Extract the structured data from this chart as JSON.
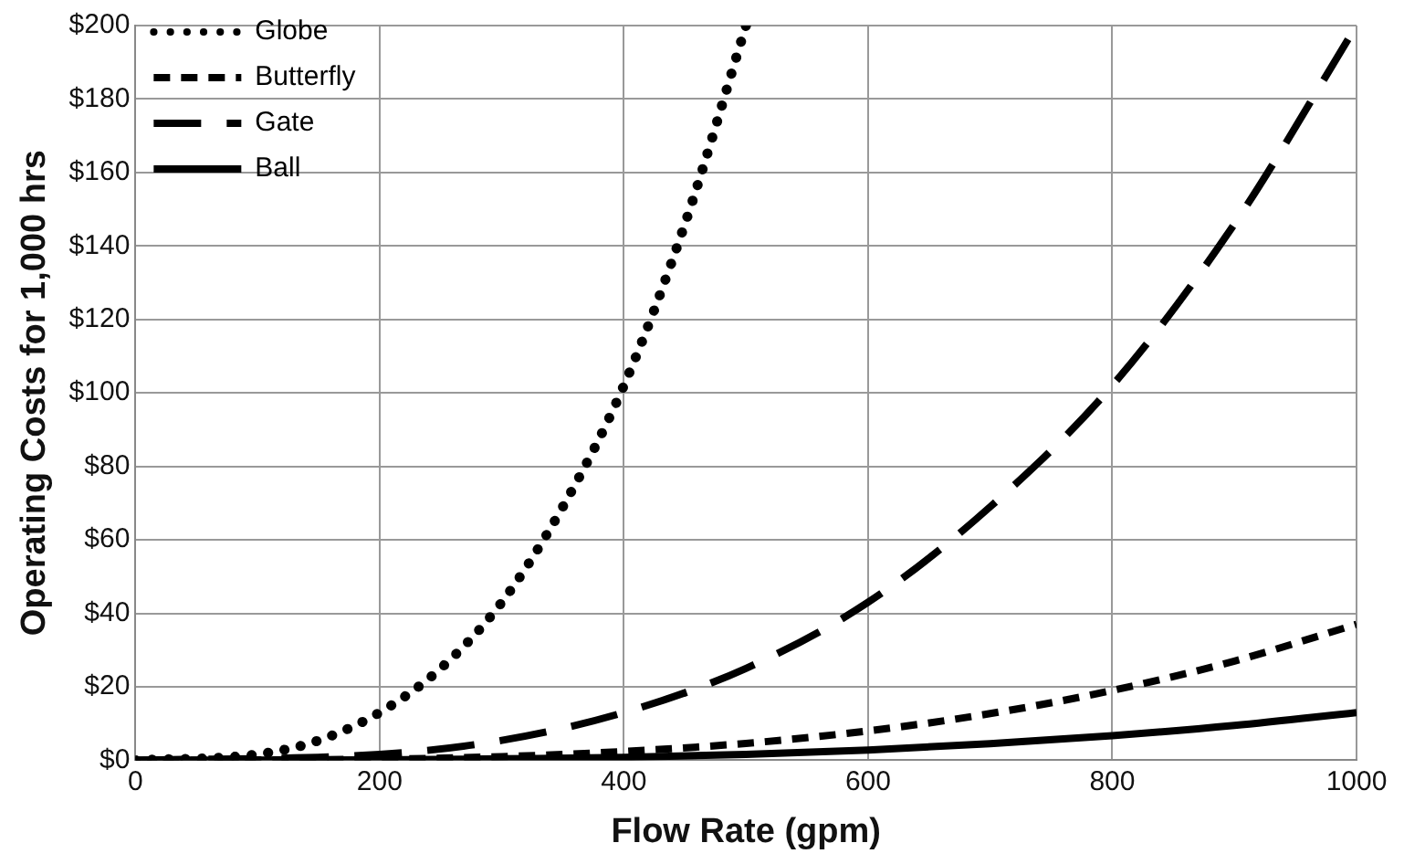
{
  "chart_data": {
    "type": "line",
    "xlabel": "Flow Rate (gpm)",
    "ylabel": "Operating Costs for 1,000 hrs",
    "xlim": [
      0,
      1000
    ],
    "xticks": [
      0,
      200,
      400,
      600,
      800,
      1000
    ],
    "ylim": [
      0,
      200
    ],
    "yticks": [
      {
        "value": 0,
        "label": "$0"
      },
      {
        "value": 20,
        "label": "$20"
      },
      {
        "value": 40,
        "label": "$40"
      },
      {
        "value": 60,
        "label": "$60"
      },
      {
        "value": 80,
        "label": "$80"
      },
      {
        "value": 100,
        "label": "$100"
      },
      {
        "value": 120,
        "label": "$120"
      },
      {
        "value": 140,
        "label": "$140"
      },
      {
        "value": 160,
        "label": "$160"
      },
      {
        "value": 180,
        "label": "$180"
      },
      {
        "value": 200,
        "label": "$200"
      }
    ],
    "grid": true,
    "legend": "top left",
    "marker": "none",
    "series": [
      {
        "name": "Globe",
        "color": "#000000",
        "line_style": "dotted",
        "x": [
          0,
          100,
          150,
          200,
          250,
          300,
          350,
          400,
          450,
          500
        ],
        "values": [
          0,
          1.6,
          5.4,
          13,
          25,
          43,
          69,
          102,
          146,
          200
        ]
      },
      {
        "name": "Butterfly",
        "color": "#000000",
        "line_style": "dashed",
        "x": [
          0,
          200,
          300,
          400,
          500,
          600,
          700,
          800,
          900,
          1000
        ],
        "values": [
          0,
          0.3,
          1,
          2.4,
          4.6,
          8,
          12.7,
          19,
          27,
          37
        ]
      },
      {
        "name": "Gate",
        "color": "#000000",
        "line_style": "dashed",
        "x": [
          0,
          200,
          300,
          400,
          500,
          600,
          700,
          800,
          900,
          1000
        ],
        "values": [
          0,
          1.6,
          5.4,
          13,
          25,
          43,
          69,
          102,
          146,
          200
        ]
      },
      {
        "name": "Ball",
        "color": "#000000",
        "line_style": "solid",
        "x": [
          0,
          200,
          300,
          400,
          500,
          600,
          700,
          800,
          900,
          1000
        ],
        "values": [
          0,
          0.1,
          0.4,
          0.8,
          1.6,
          2.8,
          4.5,
          6.7,
          9.5,
          13
        ]
      }
    ]
  }
}
